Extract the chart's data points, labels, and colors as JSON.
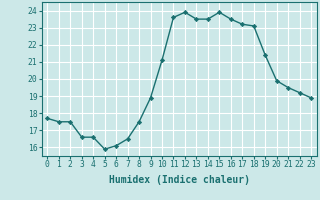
{
  "x": [
    0,
    1,
    2,
    3,
    4,
    5,
    6,
    7,
    8,
    9,
    10,
    11,
    12,
    13,
    14,
    15,
    16,
    17,
    18,
    19,
    20,
    21,
    22,
    23
  ],
  "y": [
    17.7,
    17.5,
    17.5,
    16.6,
    16.6,
    15.9,
    16.1,
    16.5,
    17.5,
    18.9,
    21.1,
    23.6,
    23.9,
    23.5,
    23.5,
    23.9,
    23.5,
    23.2,
    23.1,
    21.4,
    19.9,
    19.5,
    19.2,
    18.9
  ],
  "line_color": "#1a7070",
  "marker": "D",
  "marker_size": 2.2,
  "bg_color": "#cce8e8",
  "grid_color": "#ffffff",
  "xlabel": "Humidex (Indice chaleur)",
  "ylim": [
    15.5,
    24.5
  ],
  "xlim": [
    -0.5,
    23.5
  ],
  "yticks": [
    16,
    17,
    18,
    19,
    20,
    21,
    22,
    23,
    24
  ],
  "xticks": [
    0,
    1,
    2,
    3,
    4,
    5,
    6,
    7,
    8,
    9,
    10,
    11,
    12,
    13,
    14,
    15,
    16,
    17,
    18,
    19,
    20,
    21,
    22,
    23
  ],
  "tick_color": "#1a7070",
  "label_fontsize": 7.0,
  "tick_fontsize": 5.8,
  "linewidth": 1.0
}
